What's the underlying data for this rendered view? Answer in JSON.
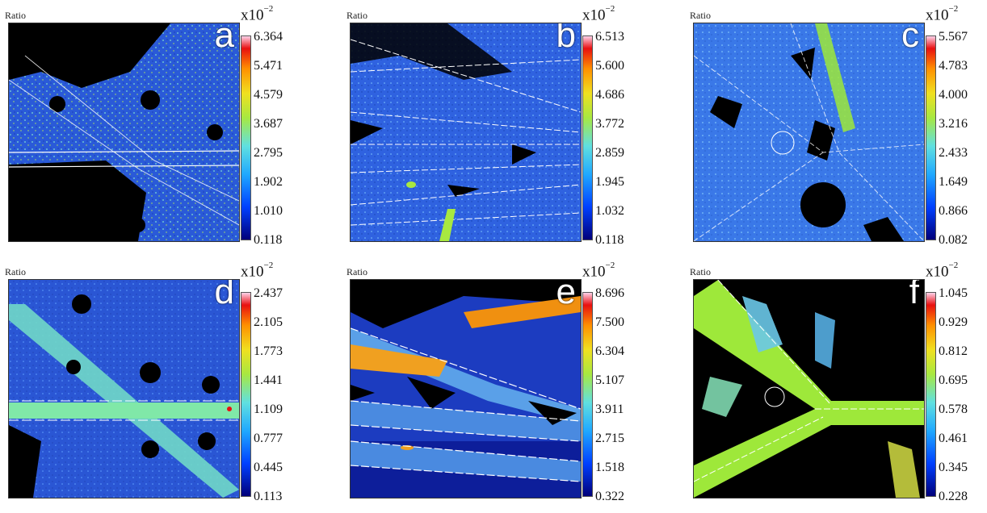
{
  "panels": [
    {
      "letter": "a",
      "ratio_label": "Ratio",
      "multiplier": "x10",
      "exponent": "−2",
      "ticks": [
        "6.364",
        "5.471",
        "4.579",
        "3.687",
        "2.795",
        "1.902",
        "1.010",
        "0.118"
      ]
    },
    {
      "letter": "b",
      "ratio_label": "Ratio",
      "multiplier": "x10",
      "exponent": "−2",
      "ticks": [
        "6.513",
        "5.600",
        "4.686",
        "3.772",
        "2.859",
        "1.945",
        "1.032",
        "0.118"
      ]
    },
    {
      "letter": "c",
      "ratio_label": "Ratio",
      "multiplier": "x10",
      "exponent": "−2",
      "ticks": [
        "5.567",
        "4.783",
        "4.000",
        "3.216",
        "2.433",
        "1.649",
        "0.866",
        "0.082"
      ]
    },
    {
      "letter": "d",
      "ratio_label": "Ratio",
      "multiplier": "x10",
      "exponent": "−2",
      "ticks": [
        "2.437",
        "2.105",
        "1.773",
        "1.441",
        "1.109",
        "0.777",
        "0.445",
        "0.113"
      ]
    },
    {
      "letter": "e",
      "ratio_label": "Ratio",
      "multiplier": "x10",
      "exponent": "−2",
      "ticks": [
        "8.696",
        "7.500",
        "6.304",
        "5.107",
        "3.911",
        "2.715",
        "1.518",
        "0.322"
      ]
    },
    {
      "letter": "f",
      "ratio_label": "Ratio",
      "multiplier": "x10",
      "exponent": "−2",
      "ticks": [
        "1.045",
        "0.929",
        "0.812",
        "0.695",
        "0.578",
        "0.461",
        "0.345",
        "0.228"
      ]
    }
  ],
  "colors": {
    "background_void": "#000000",
    "base_blue": "#2a5ad8",
    "high_green": "#9ee83a",
    "high_red": "#e81010",
    "boundary_line": "#ffffff"
  }
}
